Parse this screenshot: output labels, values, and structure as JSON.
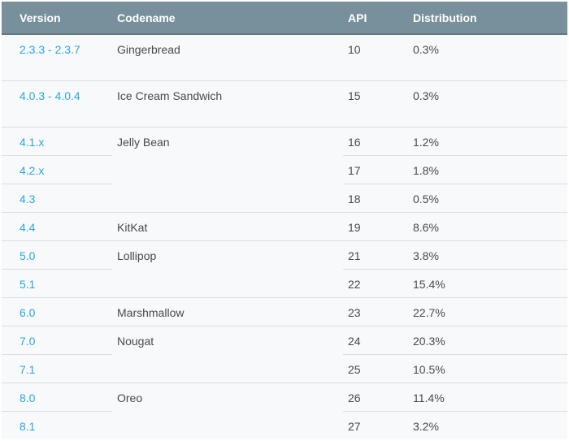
{
  "colors": {
    "header_bg": "#78909c",
    "header_border": "#64787f",
    "header_text": "#ffffff",
    "row_bg": "#f8f9fb",
    "border": "#dcdee1",
    "text": "#46494d",
    "link_blue": "#2aa7e1",
    "page_bg": "#ffffff"
  },
  "table": {
    "columns": [
      {
        "key": "version",
        "label": "Version"
      },
      {
        "key": "codename",
        "label": "Codename"
      },
      {
        "key": "api",
        "label": "API"
      },
      {
        "key": "distribution",
        "label": "Distribution"
      }
    ],
    "groups": [
      {
        "codename": "Gingerbread",
        "rows": [
          {
            "version": "2.3.3 - 2.3.7",
            "api": "10",
            "distribution": "0.3%",
            "tall": true
          }
        ]
      },
      {
        "codename": "Ice Cream Sandwich",
        "rows": [
          {
            "version": "4.0.3 - 4.0.4",
            "api": "15",
            "distribution": "0.3%",
            "tall": true
          }
        ]
      },
      {
        "codename": "Jelly Bean",
        "rows": [
          {
            "version": "4.1.x",
            "api": "16",
            "distribution": "1.2%"
          },
          {
            "version": "4.2.x",
            "api": "17",
            "distribution": "1.8%"
          },
          {
            "version": "4.3",
            "api": "18",
            "distribution": "0.5%"
          }
        ]
      },
      {
        "codename": "KitKat",
        "rows": [
          {
            "version": "4.4",
            "api": "19",
            "distribution": "8.6%"
          }
        ]
      },
      {
        "codename": "Lollipop",
        "rows": [
          {
            "version": "5.0",
            "api": "21",
            "distribution": "3.8%"
          },
          {
            "version": "5.1",
            "api": "22",
            "distribution": "15.4%"
          }
        ]
      },
      {
        "codename": "Marshmallow",
        "rows": [
          {
            "version": "6.0",
            "api": "23",
            "distribution": "22.7%"
          }
        ]
      },
      {
        "codename": "Nougat",
        "rows": [
          {
            "version": "7.0",
            "api": "24",
            "distribution": "20.3%"
          },
          {
            "version": "7.1",
            "api": "25",
            "distribution": "10.5%"
          }
        ]
      },
      {
        "codename": "Oreo",
        "rows": [
          {
            "version": "8.0",
            "api": "26",
            "distribution": "11.4%"
          },
          {
            "version": "8.1",
            "api": "27",
            "distribution": "3.2%"
          }
        ]
      }
    ]
  }
}
